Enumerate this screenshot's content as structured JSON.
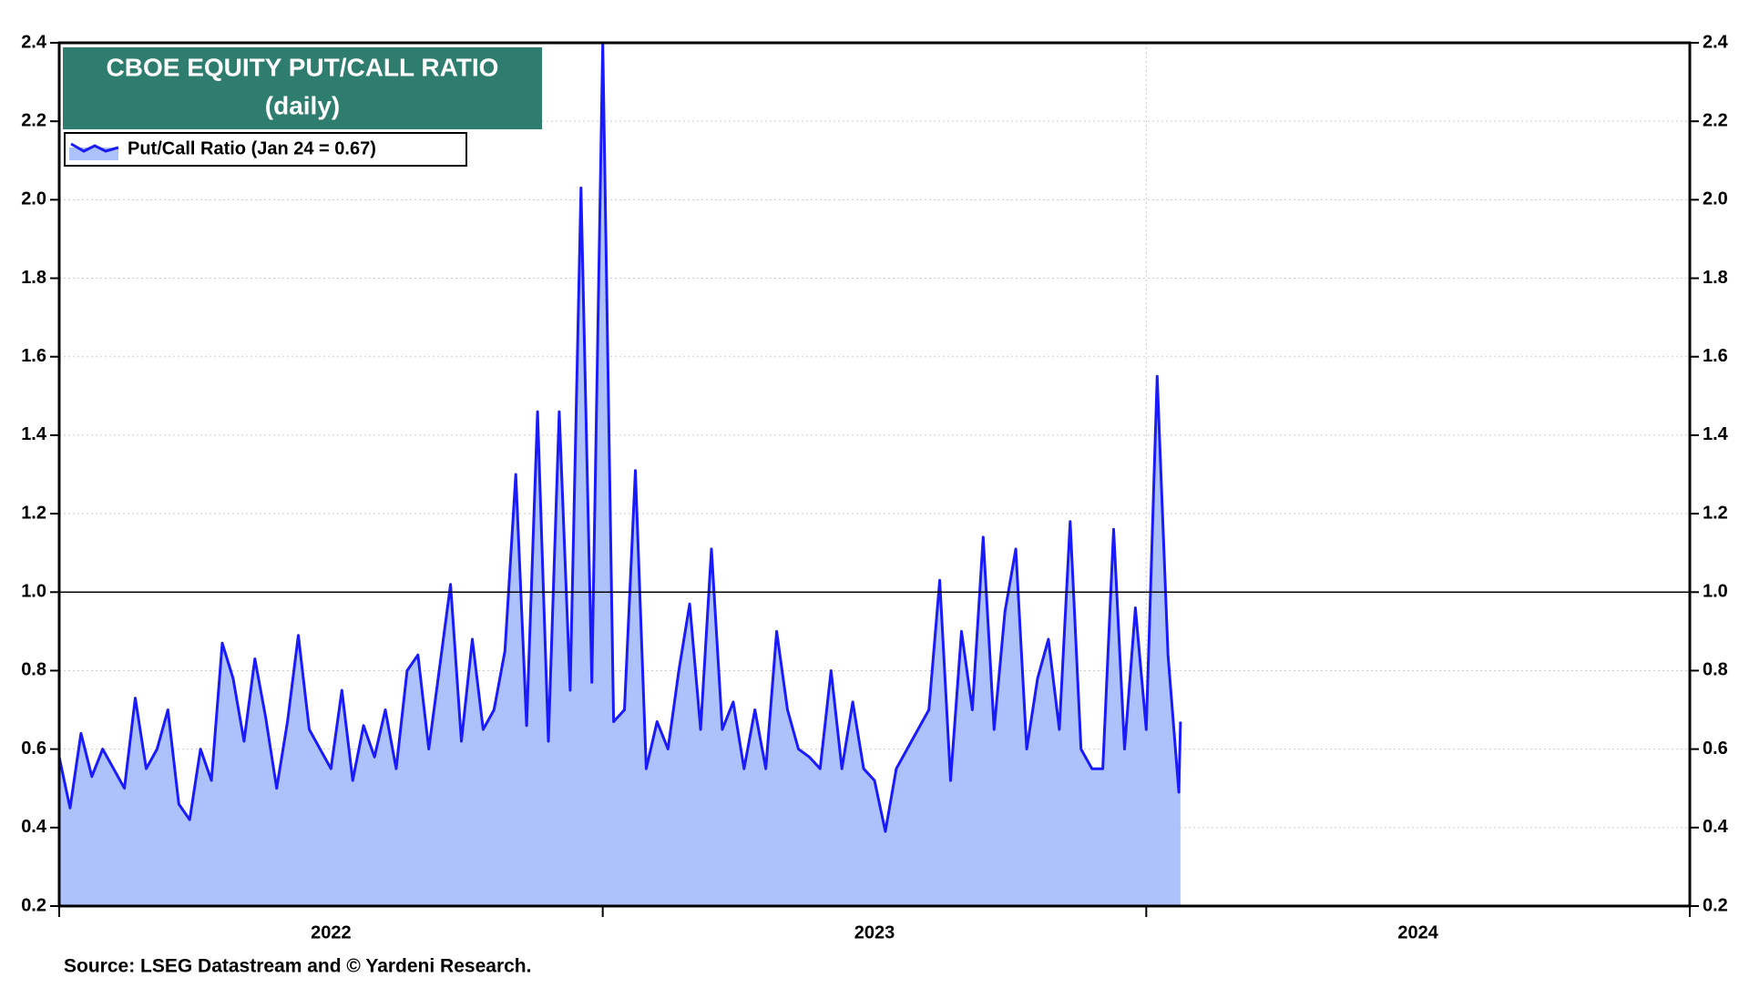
{
  "chart_data": {
    "type": "area-line",
    "title": "CBOE EQUITY PUT/CALL RATIO",
    "subtitle": "(daily)",
    "source": "Source: LSEG Datastream and © Yardeni Research.",
    "x": [
      2022.0,
      2022.02,
      2022.04,
      2022.06,
      2022.08,
      2022.1,
      2022.12,
      2022.14,
      2022.16,
      2022.18,
      2022.2,
      2022.22,
      2022.24,
      2022.26,
      2022.28,
      2022.3,
      2022.32,
      2022.34,
      2022.36,
      2022.38,
      2022.4,
      2022.42,
      2022.44,
      2022.46,
      2022.48,
      2022.5,
      2022.52,
      2022.54,
      2022.56,
      2022.58,
      2022.6,
      2022.62,
      2022.64,
      2022.66,
      2022.68,
      2022.7,
      2022.72,
      2022.74,
      2022.76,
      2022.78,
      2022.8,
      2022.82,
      2022.84,
      2022.86,
      2022.88,
      2022.9,
      2022.92,
      2022.94,
      2022.96,
      2022.98,
      2023.0,
      2023.02,
      2023.04,
      2023.06,
      2023.08,
      2023.1,
      2023.12,
      2023.14,
      2023.16,
      2023.18,
      2023.2,
      2023.22,
      2023.24,
      2023.26,
      2023.28,
      2023.3,
      2023.32,
      2023.34,
      2023.36,
      2023.38,
      2023.4,
      2023.42,
      2023.44,
      2023.46,
      2023.48,
      2023.5,
      2023.52,
      2023.54,
      2023.56,
      2023.58,
      2023.6,
      2023.62,
      2023.64,
      2023.66,
      2023.68,
      2023.7,
      2023.72,
      2023.74,
      2023.76,
      2023.78,
      2023.8,
      2023.82,
      2023.84,
      2023.86,
      2023.88,
      2023.9,
      2023.92,
      2023.94,
      2023.96,
      2023.98,
      2024.0,
      2024.02,
      2024.04,
      2024.06,
      2024.063
    ],
    "series": [
      {
        "name": "Put/Call Ratio (Jan 24 = 0.67)",
        "color": "#1a1aff",
        "fill": "#adc2fa",
        "values": [
          0.58,
          0.45,
          0.64,
          0.53,
          0.6,
          0.55,
          0.5,
          0.73,
          0.55,
          0.6,
          0.7,
          0.46,
          0.42,
          0.6,
          0.52,
          0.87,
          0.78,
          0.62,
          0.83,
          0.68,
          0.5,
          0.67,
          0.89,
          0.65,
          0.6,
          0.55,
          0.75,
          0.52,
          0.66,
          0.58,
          0.7,
          0.55,
          0.8,
          0.84,
          0.6,
          0.81,
          1.02,
          0.62,
          0.88,
          0.65,
          0.7,
          0.85,
          1.3,
          0.66,
          1.46,
          0.62,
          1.46,
          0.75,
          2.03,
          0.77,
          2.4,
          0.67,
          0.7,
          1.31,
          0.55,
          0.67,
          0.6,
          0.8,
          0.97,
          0.65,
          1.11,
          0.65,
          0.72,
          0.55,
          0.7,
          0.55,
          0.9,
          0.7,
          0.6,
          0.58,
          0.55,
          0.8,
          0.55,
          0.72,
          0.55,
          0.52,
          0.39,
          0.55,
          0.6,
          0.65,
          0.7,
          1.03,
          0.52,
          0.9,
          0.7,
          1.14,
          0.65,
          0.95,
          1.11,
          0.6,
          0.78,
          0.88,
          0.65,
          1.18,
          0.6,
          0.55,
          0.55,
          1.16,
          0.6,
          0.96,
          0.65,
          1.55,
          0.84,
          0.49,
          0.67
        ]
      }
    ],
    "xlim": [
      2022,
      2025
    ],
    "x_major_ticks": [
      2022,
      2023,
      2024,
      2025
    ],
    "xticks": [
      {
        "value": 2022.5,
        "label": "2022"
      },
      {
        "value": 2023.5,
        "label": "2023"
      },
      {
        "value": 2024.5,
        "label": "2024"
      }
    ],
    "ylim": [
      0.2,
      2.4
    ],
    "yticks": [
      0.2,
      0.4,
      0.6,
      0.8,
      {
        "value": 1,
        "label": "1.0"
      },
      1.2,
      1.4,
      1.6,
      1.8,
      {
        "value": 2,
        "label": "2.0"
      },
      2.2,
      2.4
    ],
    "hline": 1,
    "grid": true
  }
}
